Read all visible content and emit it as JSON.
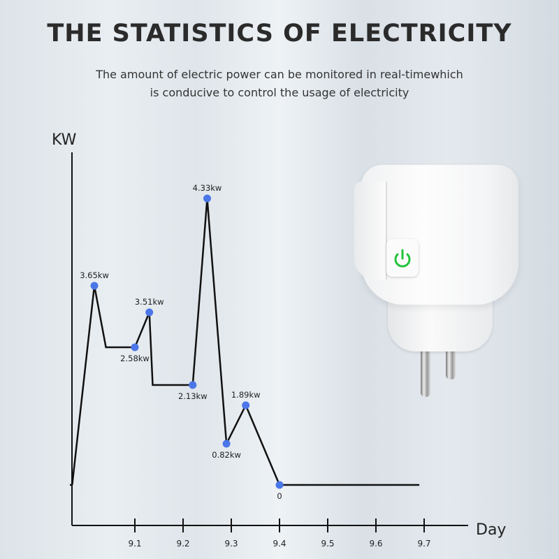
{
  "header": {
    "title": "THE STATISTICS OF ELECTRICITY",
    "subtitle_line1": "The amount of electric power can be monitored in real-timewhich",
    "subtitle_line2": "is conducive to control the usage of electricity"
  },
  "product": {
    "name": "smart-plug",
    "icon": "power-icon",
    "icon_color": "#22c33a"
  },
  "chart_data": {
    "type": "line",
    "title": "",
    "xlabel": "Day",
    "ylabel": "KW",
    "xticks": [
      "9.1",
      "9.2",
      "9.3",
      "9.4",
      "9.5",
      "9.6",
      "9.7"
    ],
    "line_color": "#111111",
    "marker_color": "#4a76e8",
    "grid": false,
    "series": [
      {
        "points": [
          {
            "x": 8.97,
            "y": 0
          },
          {
            "x": 9.016,
            "y": 3.65,
            "label": "3.65kw",
            "marker": true,
            "label_pos": "above"
          },
          {
            "x": 9.04,
            "y": 2.58
          },
          {
            "x": 9.1,
            "y": 2.58,
            "label": "2.58kw",
            "marker": true,
            "label_pos": "below"
          },
          {
            "x": 9.13,
            "y": 3.51,
            "label": "3.51kw",
            "marker": true,
            "label_pos": "above"
          },
          {
            "x": 9.137,
            "y": 2.13
          },
          {
            "x": 9.22,
            "y": 2.13,
            "label": "2.13kw",
            "marker": true,
            "label_pos": "below"
          },
          {
            "x": 9.25,
            "y": 4.33,
            "label": "4.33kw",
            "marker": true,
            "label_pos": "above"
          },
          {
            "x": 9.29,
            "y": 0.82,
            "label": "0.82kw",
            "marker": true,
            "label_pos": "below"
          },
          {
            "x": 9.33,
            "y": 1.89,
            "label": "1.89kw",
            "marker": true,
            "label_pos": "above"
          },
          {
            "x": 9.4,
            "y": 0,
            "label": "0",
            "marker": true,
            "label_pos": "below"
          },
          {
            "x": 9.69,
            "y": 0
          }
        ]
      }
    ]
  }
}
